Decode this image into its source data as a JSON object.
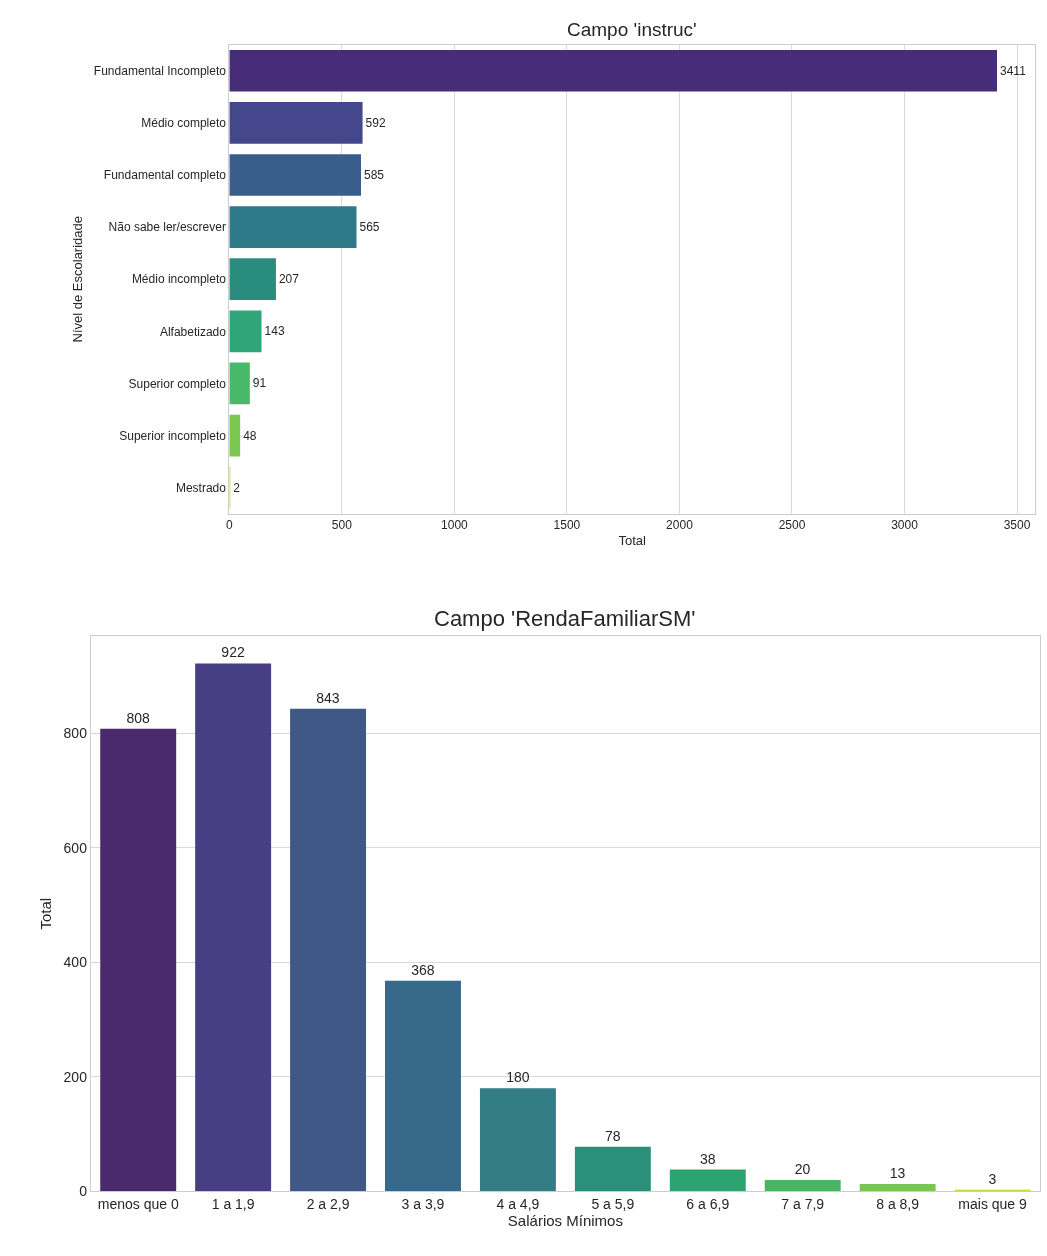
{
  "chart_data": [
    {
      "type": "bar",
      "orientation": "horizontal",
      "title": "Campo 'instruc'",
      "xlabel": "Total",
      "ylabel": "Nível de Escolaridade",
      "categories": [
        "Fundamental Incompleto",
        "Médio completo",
        "Fundamental completo",
        "Não sabe ler/escrever",
        "Médio incompleto",
        "Alfabetizado",
        "Superior completo",
        "Superior incompleto",
        "Mestrado"
      ],
      "values": [
        3411,
        592,
        585,
        565,
        207,
        143,
        91,
        48,
        2
      ],
      "colors": [
        "#472c7a",
        "#45478c",
        "#3a5e8c",
        "#2f7a8a",
        "#2a8c7d",
        "#2fa57a",
        "#48b86a",
        "#7bc653",
        "#b8d73c"
      ],
      "xlim": [
        0,
        3580
      ],
      "xticks": [
        0,
        500,
        1000,
        1500,
        2000,
        2500,
        3000,
        3500
      ],
      "grid": "x",
      "data_labels": true
    },
    {
      "type": "bar",
      "title": "Campo 'RendaFamiliarSM'",
      "xlabel": "Salários Mínimos",
      "ylabel": "Total",
      "categories": [
        "menos que 0",
        "1 a 1,9",
        "2 a 2,9",
        "3 a 3,9",
        "4 a 4,9",
        "5 a 5,9",
        "6 a 6,9",
        "7 a 7,9",
        "8 a 8,9",
        "mais que 9"
      ],
      "values": [
        808,
        922,
        843,
        368,
        180,
        78,
        38,
        20,
        13,
        3
      ],
      "colors": [
        "#4b2a6c",
        "#463f83",
        "#3f5886",
        "#37698a",
        "#327d86",
        "#2a9079",
        "#2da371",
        "#49b560",
        "#79c651",
        "#bada3d"
      ],
      "ylim": [
        0,
        970
      ],
      "yticks": [
        0,
        200,
        400,
        600,
        800
      ],
      "grid": "y",
      "data_labels": true
    }
  ]
}
